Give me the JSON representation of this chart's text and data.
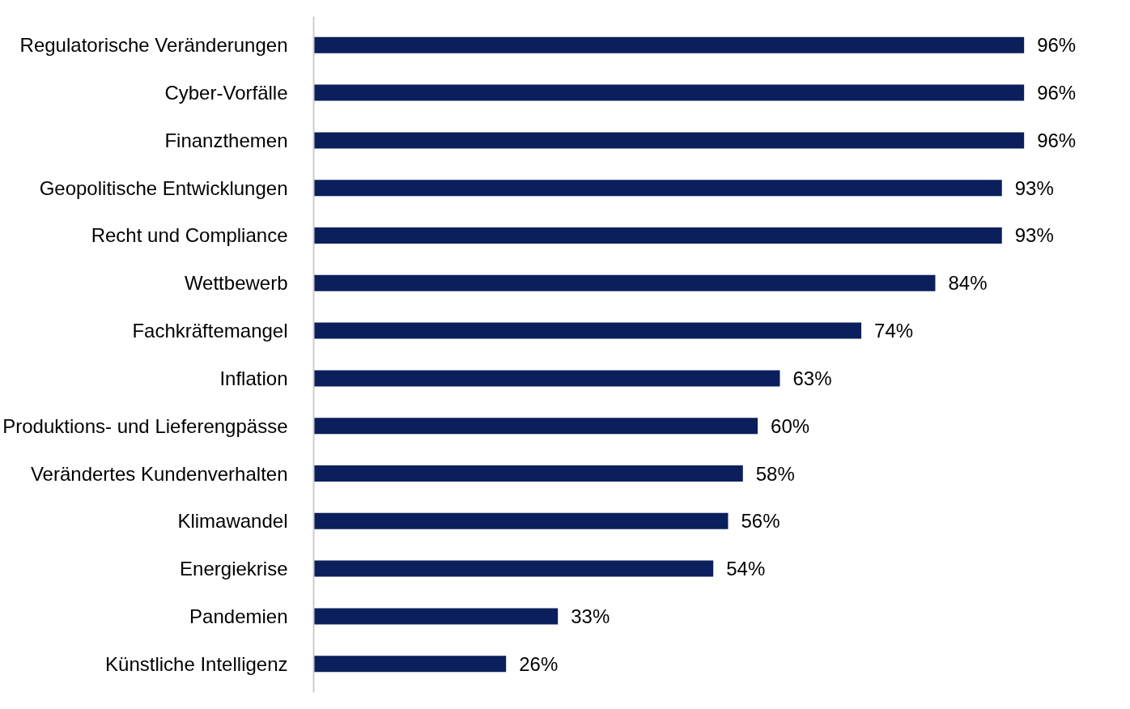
{
  "chart_data": {
    "type": "bar",
    "orientation": "horizontal",
    "categories": [
      "Regulatorische Veränderungen",
      "Cyber-Vorfälle",
      "Finanzthemen",
      "Geopolitische Entwicklungen",
      "Recht und Compliance",
      "Wettbewerb",
      "Fachkräftemangel",
      "Inflation",
      "Produktions- und Lieferengpässe",
      "Verändertes Kundenverhalten",
      "Klimawandel",
      "Energiekrise",
      "Pandemien",
      "Künstliche Intelligenz"
    ],
    "values": [
      96,
      96,
      96,
      93,
      93,
      84,
      74,
      63,
      60,
      58,
      56,
      54,
      33,
      26
    ],
    "color": "#0b1f5c",
    "value_labels": [
      "96%",
      "96%",
      "96%",
      "93%",
      "93%",
      "84%",
      "74%",
      "63%",
      "60%",
      "58%",
      "56%",
      "54%",
      "33%",
      "26%"
    ],
    "grid": false
  }
}
